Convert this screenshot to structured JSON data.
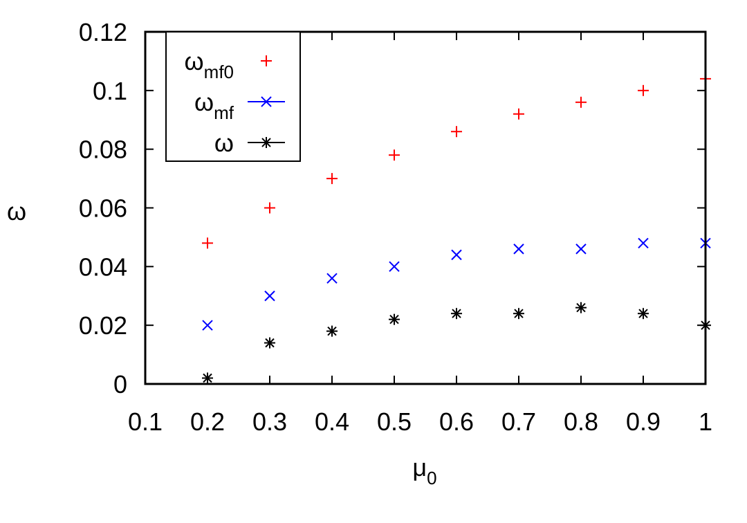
{
  "chart_data": {
    "type": "scatter",
    "xlabel": "μ",
    "xlabel_sub": "0",
    "ylabel": "ω",
    "xlim": [
      0.1,
      1.0
    ],
    "ylim": [
      0,
      0.12
    ],
    "xticks": [
      "0.1",
      "0.2",
      "0.3",
      "0.4",
      "0.5",
      "0.6",
      "0.7",
      "0.8",
      "0.9",
      "1"
    ],
    "yticks": [
      "0",
      "0.02",
      "0.04",
      "0.06",
      "0.08",
      "0.1",
      "0.12"
    ],
    "grid": false,
    "legend_position": "top-left",
    "x": [
      0.2,
      0.3,
      0.4,
      0.5,
      0.6,
      0.7,
      0.8,
      0.9,
      1.0
    ],
    "series": [
      {
        "name": "ω",
        "name_sub": "mf0",
        "marker": "plus",
        "color": "#ff0000",
        "line_in_legend": false,
        "values": [
          0.048,
          0.06,
          0.07,
          0.078,
          0.086,
          0.092,
          0.096,
          0.1,
          0.104
        ]
      },
      {
        "name": "ω",
        "name_sub": "mf",
        "marker": "cross",
        "color": "#0000ff",
        "line_in_legend": true,
        "values": [
          0.02,
          0.03,
          0.036,
          0.04,
          0.044,
          0.046,
          0.046,
          0.048,
          0.048
        ]
      },
      {
        "name": "ω",
        "name_sub": "",
        "marker": "star",
        "color": "#000000",
        "line_in_legend": true,
        "values": [
          0.002,
          0.014,
          0.018,
          0.022,
          0.024,
          0.024,
          0.026,
          0.024,
          0.02
        ]
      }
    ]
  }
}
